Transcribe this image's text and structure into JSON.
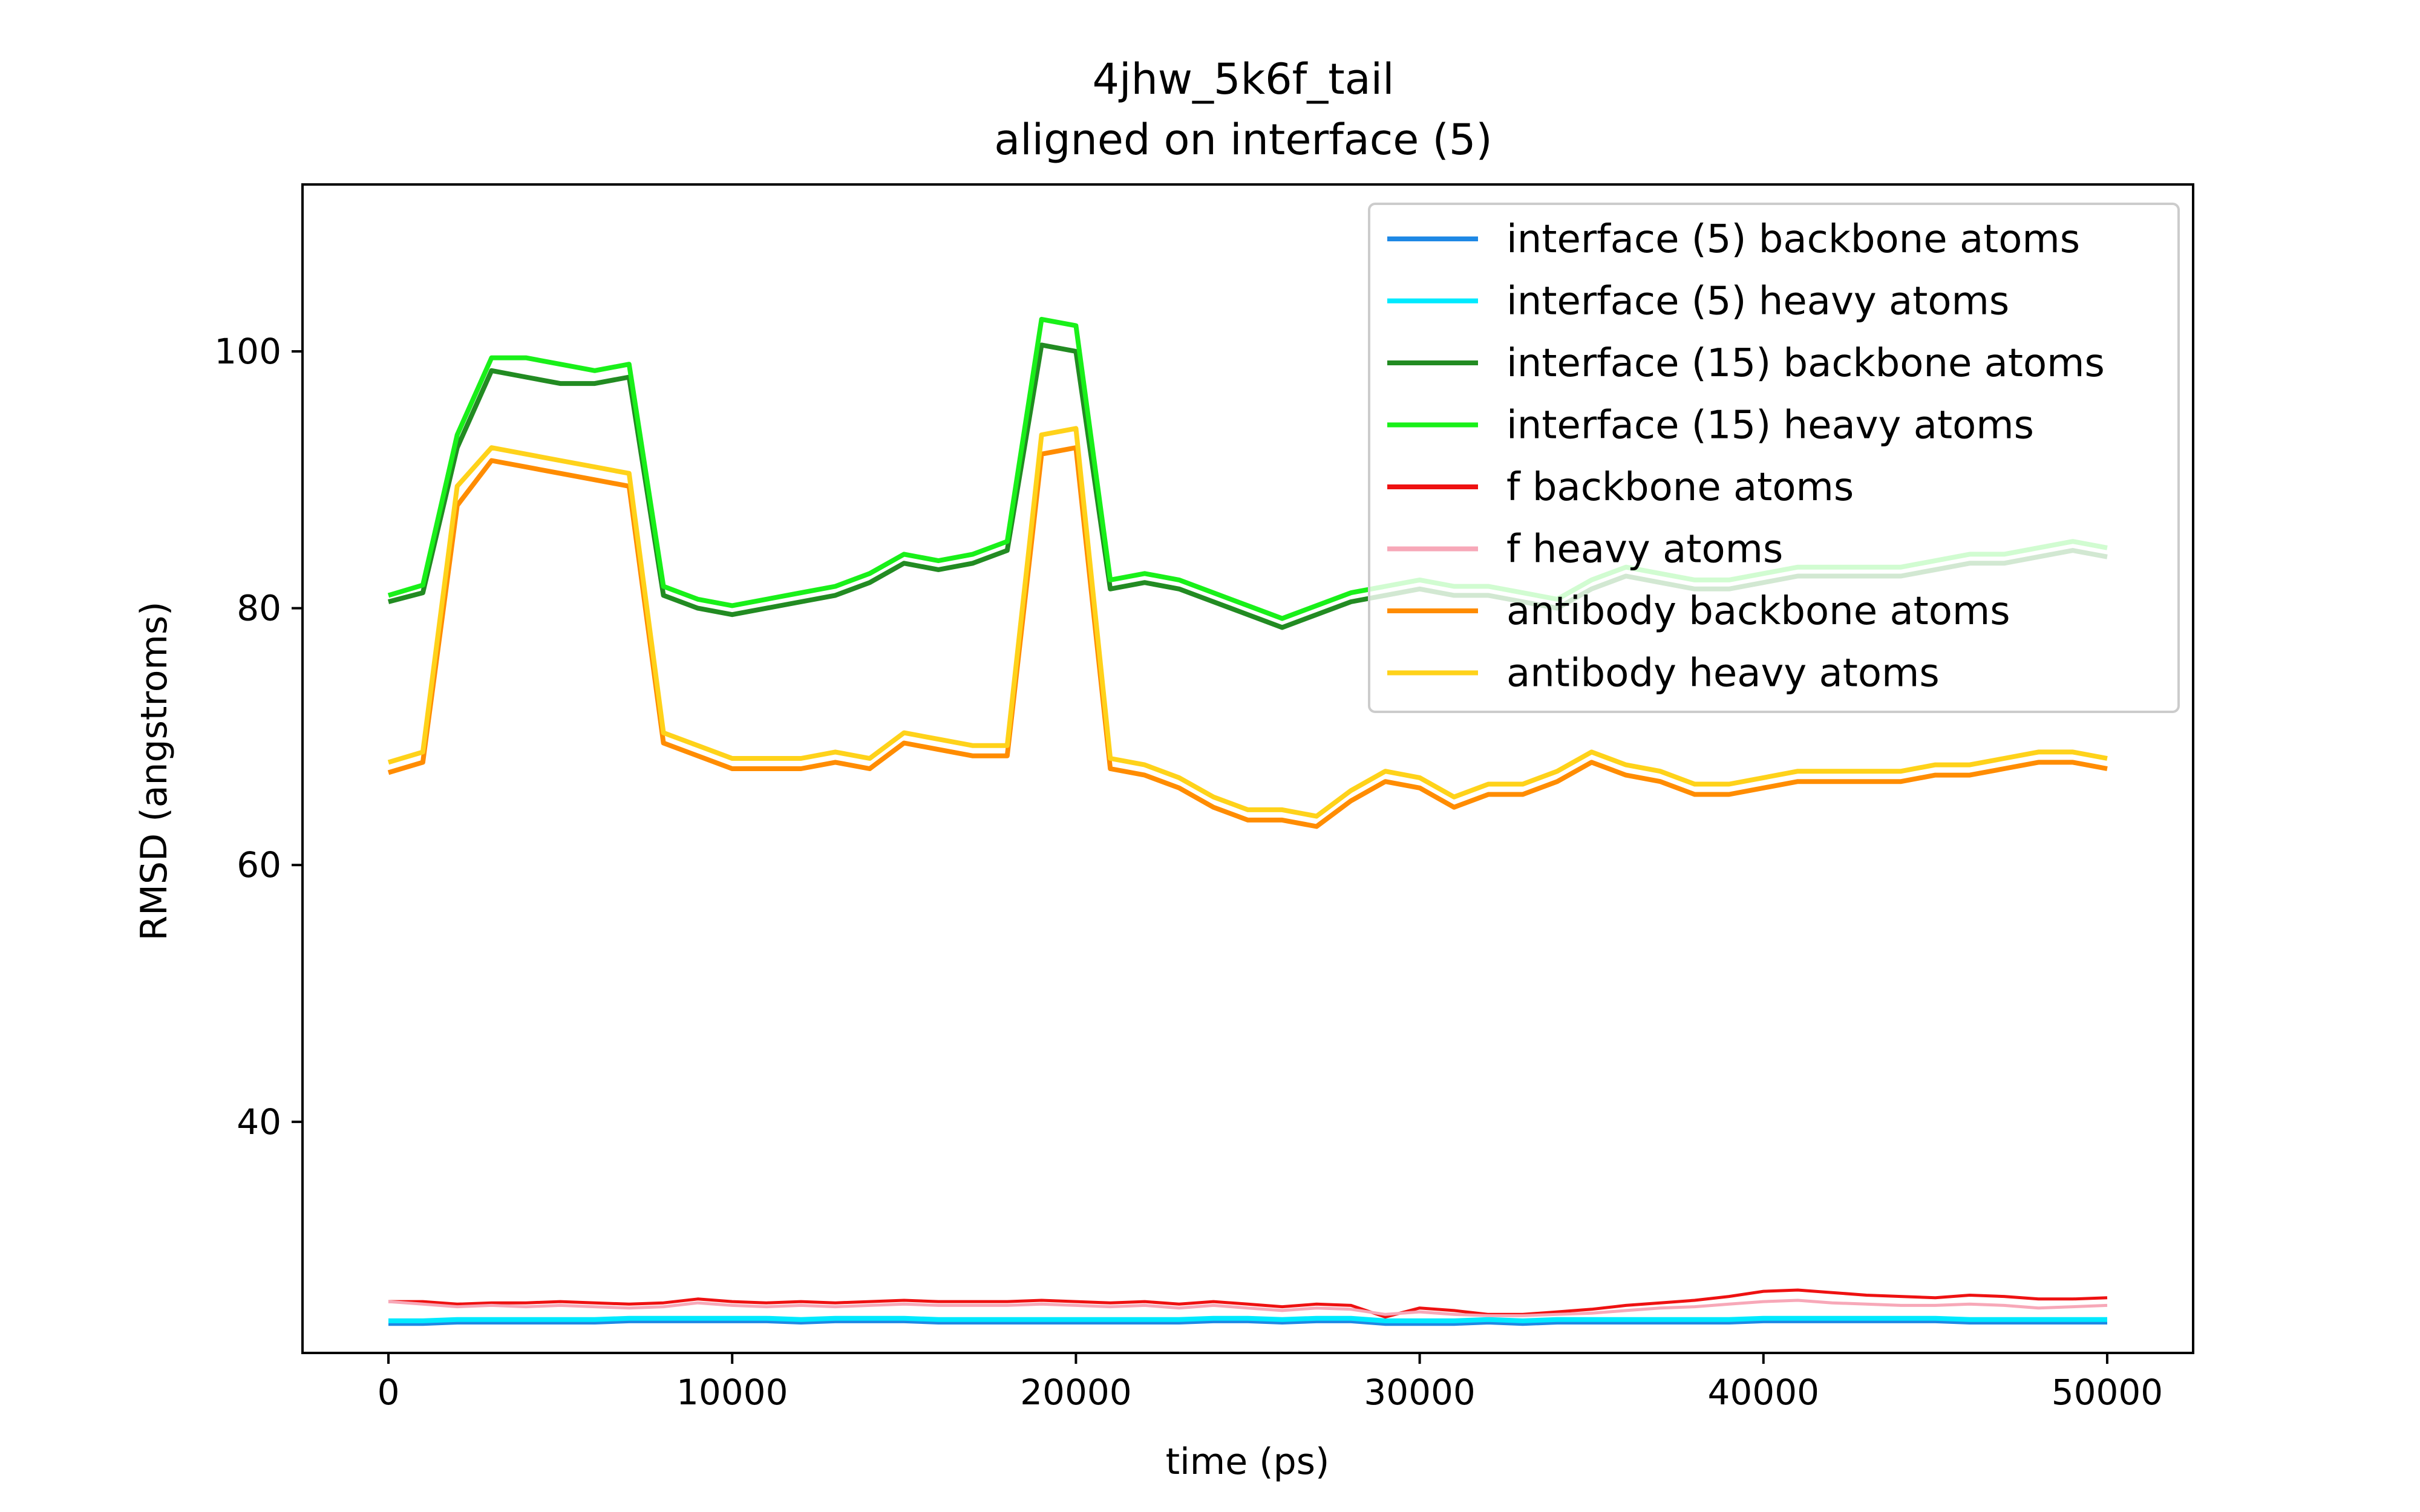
{
  "chart_data": {
    "type": "line",
    "title": "4jhw_5k6f_tail",
    "subtitle": "aligned on interface (5)",
    "xlabel": "time (ps)",
    "ylabel": "RMSD (angstroms)",
    "xlim": [
      -2500,
      52500
    ],
    "ylim": [
      22,
      113
    ],
    "xticks": [
      0,
      10000,
      20000,
      30000,
      40000,
      50000
    ],
    "yticks": [
      40,
      60,
      80,
      100
    ],
    "legend_position": "top-right",
    "grid": false,
    "x": [
      0,
      1000,
      2000,
      3000,
      4000,
      5000,
      6000,
      7000,
      8000,
      9000,
      10000,
      11000,
      12000,
      13000,
      14000,
      15000,
      16000,
      17000,
      18000,
      19000,
      20000,
      21000,
      22000,
      23000,
      24000,
      25000,
      26000,
      27000,
      28000,
      29000,
      30000,
      31000,
      32000,
      33000,
      34000,
      35000,
      36000,
      37000,
      38000,
      39000,
      40000,
      41000,
      42000,
      43000,
      44000,
      45000,
      46000,
      47000,
      48000,
      49000,
      50000
    ],
    "series": [
      {
        "name": "interface (5) backbone atoms",
        "color": "#1e88e5",
        "values": [
          24.3,
          24.3,
          24.4,
          24.4,
          24.4,
          24.4,
          24.4,
          24.5,
          24.5,
          24.5,
          24.5,
          24.5,
          24.4,
          24.5,
          24.5,
          24.5,
          24.4,
          24.4,
          24.4,
          24.4,
          24.4,
          24.4,
          24.4,
          24.4,
          24.5,
          24.5,
          24.4,
          24.5,
          24.5,
          24.3,
          24.3,
          24.3,
          24.4,
          24.3,
          24.4,
          24.4,
          24.4,
          24.4,
          24.4,
          24.4,
          24.5,
          24.5,
          24.5,
          24.5,
          24.5,
          24.5,
          24.4,
          24.4,
          24.4,
          24.4,
          24.4
        ]
      },
      {
        "name": "interface (5) heavy atoms",
        "color": "#00eaff",
        "values": [
          24.5,
          24.5,
          24.6,
          24.6,
          24.6,
          24.6,
          24.6,
          24.7,
          24.7,
          24.7,
          24.7,
          24.7,
          24.6,
          24.7,
          24.7,
          24.7,
          24.6,
          24.6,
          24.6,
          24.6,
          24.6,
          24.6,
          24.6,
          24.6,
          24.7,
          24.7,
          24.6,
          24.7,
          24.7,
          24.5,
          24.5,
          24.5,
          24.6,
          24.5,
          24.6,
          24.6,
          24.6,
          24.6,
          24.6,
          24.6,
          24.7,
          24.7,
          24.7,
          24.7,
          24.7,
          24.7,
          24.6,
          24.6,
          24.6,
          24.6,
          24.6
        ]
      },
      {
        "name": "interface (15) backbone atoms",
        "color": "#228b22",
        "values": [
          80.5,
          81.2,
          92.5,
          98.5,
          98.0,
          97.5,
          97.5,
          98.0,
          81.0,
          80.0,
          79.5,
          80.0,
          80.5,
          81.0,
          82.0,
          83.5,
          83.0,
          83.5,
          84.5,
          100.5,
          100.0,
          81.5,
          82.0,
          81.5,
          80.5,
          79.5,
          78.5,
          79.5,
          80.5,
          81.0,
          81.5,
          81.0,
          81.0,
          80.5,
          80.0,
          81.5,
          82.5,
          82.0,
          81.5,
          81.5,
          82.0,
          82.5,
          82.5,
          82.5,
          82.5,
          83.0,
          83.5,
          83.5,
          84.0,
          84.5,
          84.0
        ]
      },
      {
        "name": "interface (15) heavy atoms",
        "color": "#19f019",
        "values": [
          81.0,
          81.8,
          93.5,
          99.5,
          99.5,
          99.0,
          98.5,
          99.0,
          81.7,
          80.7,
          80.2,
          80.7,
          81.2,
          81.7,
          82.7,
          84.2,
          83.7,
          84.2,
          85.2,
          102.5,
          102.0,
          82.2,
          82.7,
          82.2,
          81.2,
          80.2,
          79.2,
          80.2,
          81.2,
          81.7,
          82.2,
          81.7,
          81.7,
          81.2,
          80.7,
          82.2,
          83.2,
          82.7,
          82.2,
          82.2,
          82.7,
          83.2,
          83.2,
          83.2,
          83.2,
          83.7,
          84.2,
          84.2,
          84.7,
          85.2,
          84.7
        ]
      },
      {
        "name": "f backbone atoms",
        "color": "#ee1111",
        "values": [
          26.0,
          26.0,
          25.8,
          25.9,
          25.9,
          26.0,
          25.9,
          25.8,
          25.9,
          26.2,
          26.0,
          25.9,
          26.0,
          25.9,
          26.0,
          26.1,
          26.0,
          26.0,
          26.0,
          26.1,
          26.0,
          25.9,
          26.0,
          25.8,
          26.0,
          25.8,
          25.6,
          25.8,
          25.7,
          24.8,
          25.5,
          25.3,
          25.0,
          25.0,
          25.2,
          25.4,
          25.7,
          25.9,
          26.1,
          26.4,
          26.8,
          26.9,
          26.7,
          26.5,
          26.4,
          26.3,
          26.5,
          26.4,
          26.2,
          26.2,
          26.3
        ]
      },
      {
        "name": "f heavy atoms",
        "color": "#f7a8b8",
        "values": [
          26.0,
          25.8,
          25.6,
          25.7,
          25.6,
          25.7,
          25.6,
          25.5,
          25.6,
          25.9,
          25.7,
          25.6,
          25.7,
          25.6,
          25.7,
          25.8,
          25.7,
          25.7,
          25.7,
          25.8,
          25.7,
          25.6,
          25.7,
          25.5,
          25.7,
          25.5,
          25.3,
          25.5,
          25.4,
          25.0,
          25.2,
          25.0,
          24.9,
          24.9,
          25.0,
          25.1,
          25.3,
          25.5,
          25.6,
          25.8,
          26.0,
          26.1,
          25.9,
          25.8,
          25.7,
          25.7,
          25.8,
          25.7,
          25.5,
          25.6,
          25.7
        ]
      },
      {
        "name": "antibody backbone atoms",
        "color": "#ff8c00",
        "values": [
          67.2,
          68.0,
          88.0,
          91.5,
          91.0,
          90.5,
          90.0,
          89.5,
          69.5,
          68.5,
          67.5,
          67.5,
          67.5,
          68.0,
          67.5,
          69.5,
          69.0,
          68.5,
          68.5,
          92.0,
          92.5,
          67.5,
          67.0,
          66.0,
          64.5,
          63.5,
          63.5,
          63.0,
          65.0,
          66.5,
          66.0,
          64.5,
          65.5,
          65.5,
          66.5,
          68.0,
          67.0,
          66.5,
          65.5,
          65.5,
          66.0,
          66.5,
          66.5,
          66.5,
          66.5,
          67.0,
          67.0,
          67.5,
          68.0,
          68.0,
          67.5
        ]
      },
      {
        "name": "antibody heavy atoms",
        "color": "#ffd21a",
        "values": [
          68.0,
          68.8,
          89.5,
          92.5,
          92.0,
          91.5,
          91.0,
          90.5,
          70.3,
          69.3,
          68.3,
          68.3,
          68.3,
          68.8,
          68.3,
          70.3,
          69.8,
          69.3,
          69.3,
          93.5,
          94.0,
          68.3,
          67.8,
          66.8,
          65.3,
          64.3,
          64.3,
          63.8,
          65.8,
          67.3,
          66.8,
          65.3,
          66.3,
          66.3,
          67.3,
          68.8,
          67.8,
          67.3,
          66.3,
          66.3,
          66.8,
          67.3,
          67.3,
          67.3,
          67.3,
          67.8,
          67.8,
          68.3,
          68.8,
          68.8,
          68.3
        ]
      }
    ]
  }
}
